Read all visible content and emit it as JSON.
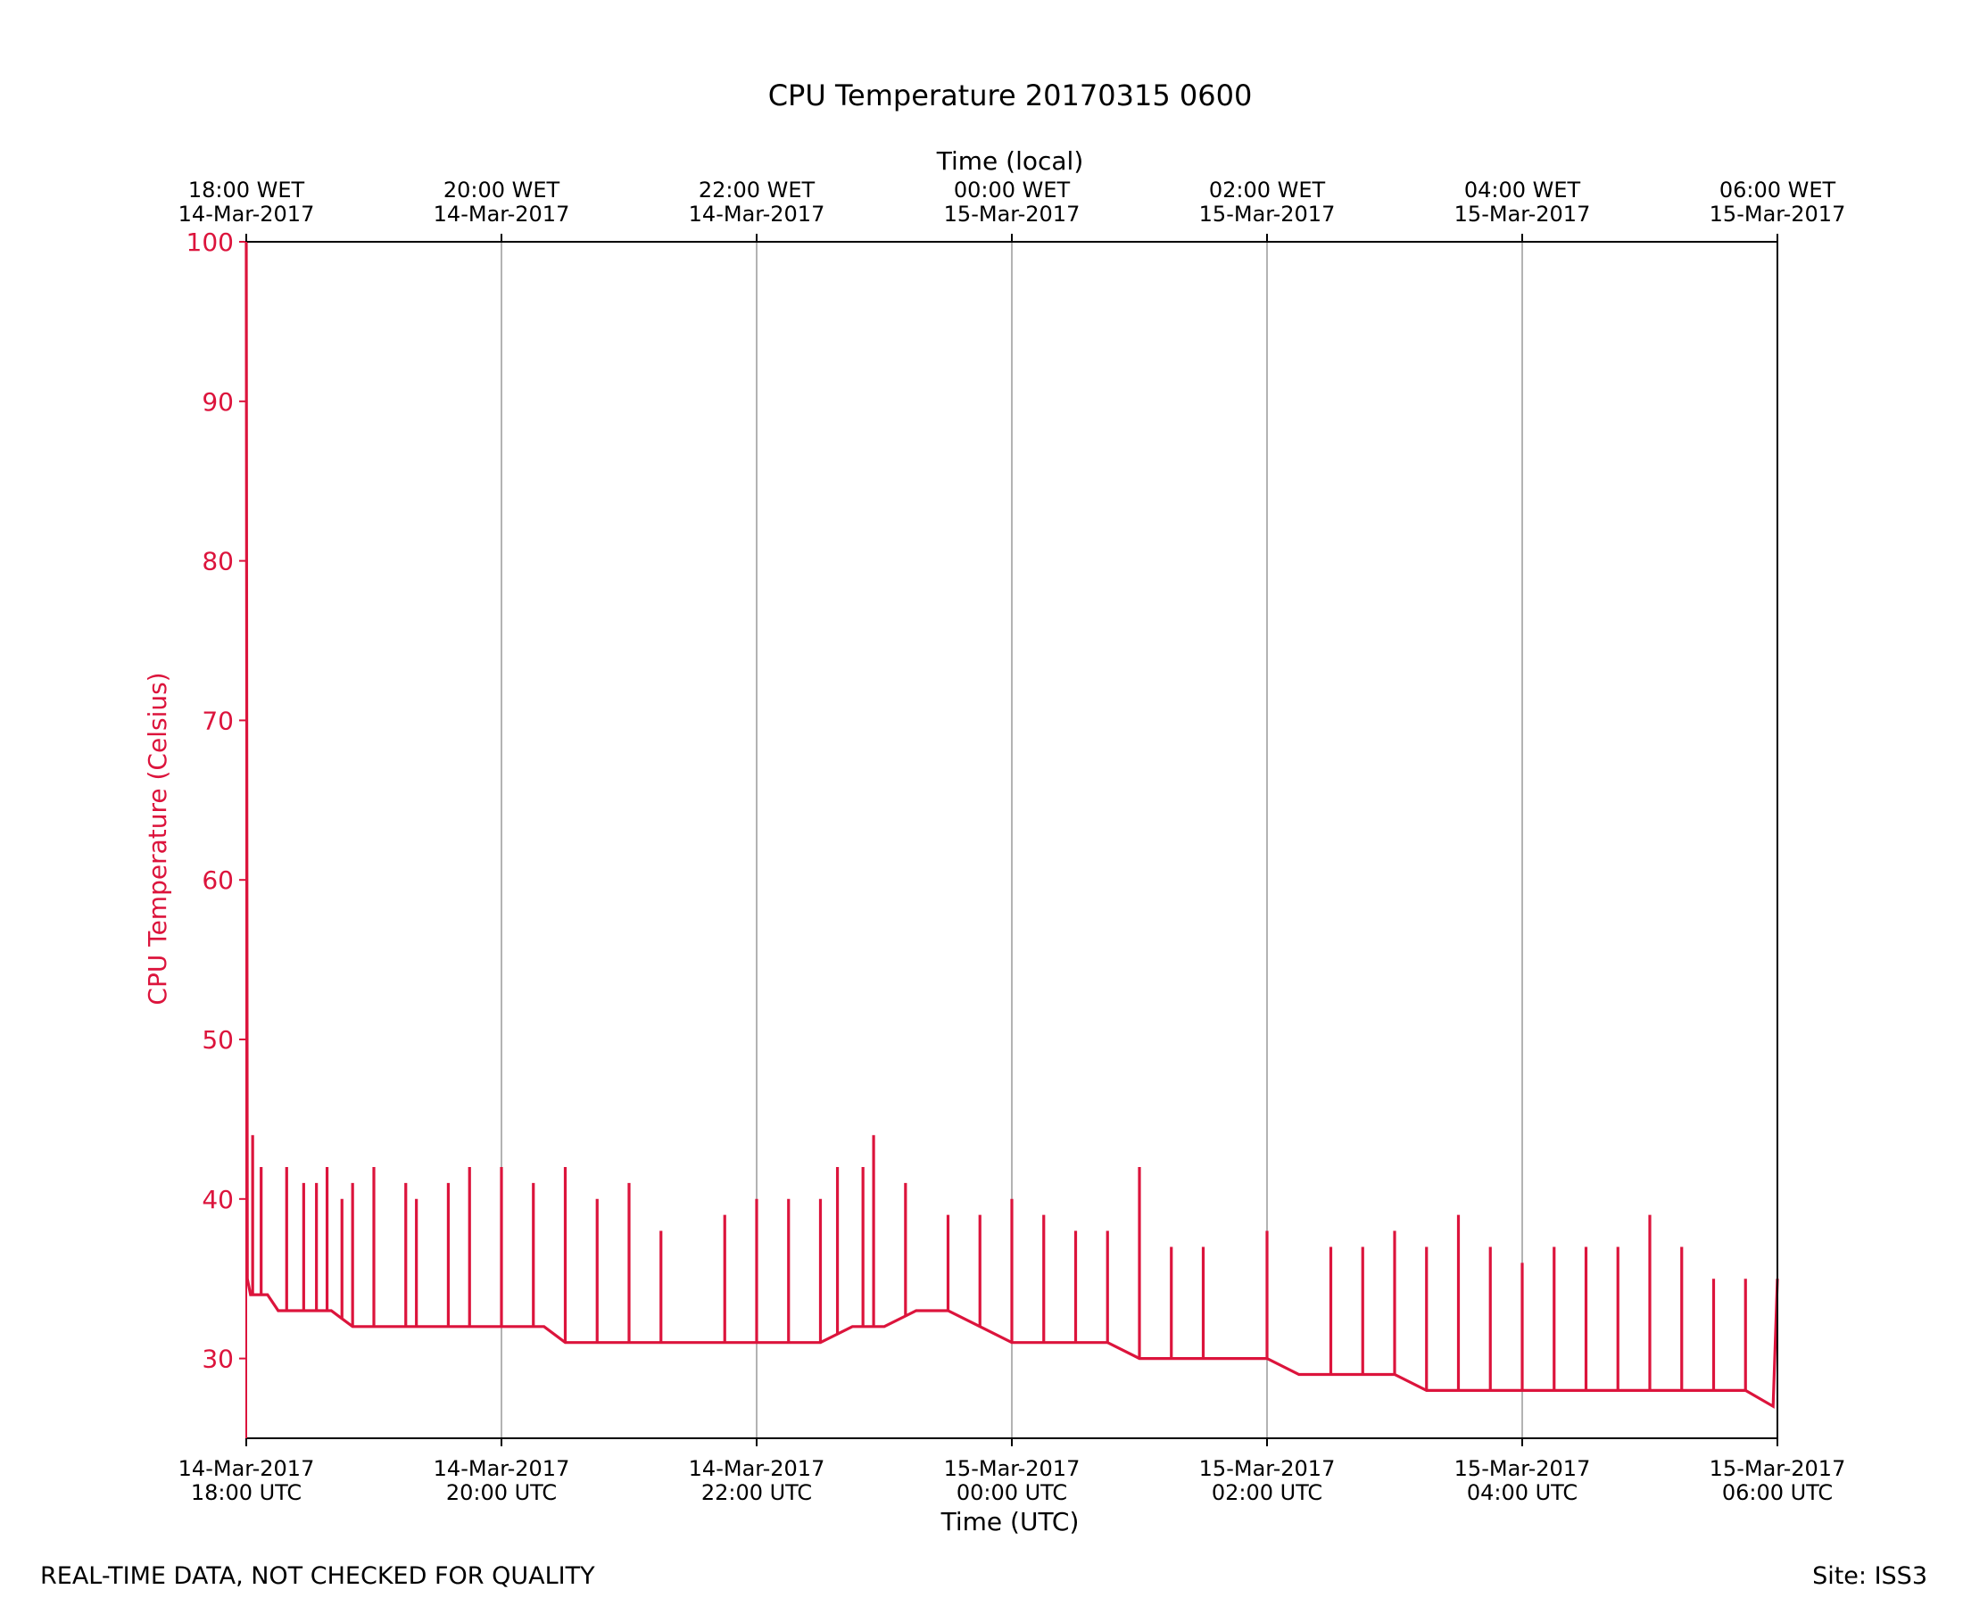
{
  "chart_data": {
    "type": "line",
    "title": "CPU Temperature 20170315 0600",
    "xlabel": "Time (UTC)",
    "x2label": "Time (local)",
    "ylabel": "CPU Temperature (Celsius)",
    "xlim": [
      "2017-03-14T18:00:00Z",
      "2017-03-15T06:00:00Z"
    ],
    "ylim": [
      25,
      100
    ],
    "grid": "vertical",
    "colors": {
      "series": "#dc143c",
      "grid": "#a0a0a0",
      "axis": "#000000",
      "text": "#000000"
    },
    "yticks": [
      30,
      40,
      50,
      60,
      70,
      80,
      90,
      100
    ],
    "ytick_labels": [
      "30",
      "40",
      "50",
      "60",
      "70",
      "80",
      "90",
      "100"
    ],
    "xticks": [
      "2017-03-14T18:00:00Z",
      "2017-03-14T20:00:00Z",
      "2017-03-14T22:00:00Z",
      "2017-03-15T00:00:00Z",
      "2017-03-15T02:00:00Z",
      "2017-03-15T04:00:00Z",
      "2017-03-15T06:00:00Z"
    ],
    "xtick_labels_bottom": [
      [
        "14-Mar-2017",
        "18:00 UTC"
      ],
      [
        "14-Mar-2017",
        "20:00 UTC"
      ],
      [
        "14-Mar-2017",
        "22:00 UTC"
      ],
      [
        "15-Mar-2017",
        "00:00 UTC"
      ],
      [
        "15-Mar-2017",
        "02:00 UTC"
      ],
      [
        "15-Mar-2017",
        "04:00 UTC"
      ],
      [
        "15-Mar-2017",
        "06:00 UTC"
      ]
    ],
    "xtick_labels_top": [
      [
        "18:00 WET",
        "14-Mar-2017"
      ],
      [
        "20:00 WET",
        "14-Mar-2017"
      ],
      [
        "22:00 WET",
        "14-Mar-2017"
      ],
      [
        "00:00 WET",
        "15-Mar-2017"
      ],
      [
        "02:00 WET",
        "15-Mar-2017"
      ],
      [
        "04:00 WET",
        "15-Mar-2017"
      ],
      [
        "06:00 WET",
        "15-Mar-2017"
      ]
    ],
    "series": [
      {
        "values_note": "",
        "x": [
          "2017-03-14T18:00:00Z",
          "2017-03-14T18:00:30Z",
          "2017-03-14T18:02:00Z",
          "2017-03-14T18:10:00Z",
          "2017-03-14T18:15:00Z",
          "2017-03-14T18:25:00Z",
          "2017-03-14T18:40:00Z",
          "2017-03-14T18:50:00Z",
          "2017-03-14T19:00:00Z",
          "2017-03-14T19:10:00Z",
          "2017-03-14T19:20:00Z",
          "2017-03-14T19:30:00Z",
          "2017-03-14T19:40:00Z",
          "2017-03-14T19:50:00Z",
          "2017-03-14T20:00:00Z",
          "2017-03-14T20:10:00Z",
          "2017-03-14T20:20:00Z",
          "2017-03-14T20:30:00Z",
          "2017-03-14T20:45:00Z",
          "2017-03-14T21:00:00Z",
          "2017-03-14T21:15:00Z",
          "2017-03-14T21:30:00Z",
          "2017-03-14T21:45:00Z",
          "2017-03-14T22:00:00Z",
          "2017-03-14T22:15:00Z",
          "2017-03-14T22:30:00Z",
          "2017-03-14T22:45:00Z",
          "2017-03-14T23:00:00Z",
          "2017-03-14T23:15:00Z",
          "2017-03-14T23:30:00Z",
          "2017-03-14T23:45:00Z",
          "2017-03-15T00:00:00Z",
          "2017-03-15T00:15:00Z",
          "2017-03-15T00:30:00Z",
          "2017-03-15T00:45:00Z",
          "2017-03-15T01:00:00Z",
          "2017-03-15T01:15:00Z",
          "2017-03-15T01:30:00Z",
          "2017-03-15T01:45:00Z",
          "2017-03-15T02:00:00Z",
          "2017-03-15T02:15:00Z",
          "2017-03-15T02:30:00Z",
          "2017-03-15T02:45:00Z",
          "2017-03-15T03:00:00Z",
          "2017-03-15T03:15:00Z",
          "2017-03-15T03:30:00Z",
          "2017-03-15T03:45:00Z",
          "2017-03-15T04:00:00Z",
          "2017-03-15T04:15:00Z",
          "2017-03-15T04:30:00Z",
          "2017-03-15T04:45:00Z",
          "2017-03-15T05:00:00Z",
          "2017-03-15T05:15:00Z",
          "2017-03-15T05:30:00Z",
          "2017-03-15T05:45:00Z",
          "2017-03-15T05:58:00Z",
          "2017-03-15T06:00:00Z"
        ],
        "values": [
          100,
          35,
          34,
          34,
          33,
          33,
          33,
          32,
          32,
          32,
          32,
          32,
          32,
          32,
          32,
          32,
          32,
          31,
          31,
          31,
          31,
          31,
          31,
          31,
          31,
          31,
          32,
          32,
          33,
          33,
          32,
          31,
          31,
          31,
          31,
          30,
          30,
          30,
          30,
          30,
          29,
          29,
          29,
          29,
          28,
          28,
          28,
          28,
          28,
          28,
          28,
          28,
          28,
          28,
          28,
          27,
          35
        ],
        "spikes": [
          [
            "2017-03-14T18:03:00Z",
            44
          ],
          [
            "2017-03-14T18:07:00Z",
            42
          ],
          [
            "2017-03-14T18:19:00Z",
            42
          ],
          [
            "2017-03-14T18:27:00Z",
            41
          ],
          [
            "2017-03-14T18:33:00Z",
            41
          ],
          [
            "2017-03-14T18:38:00Z",
            42
          ],
          [
            "2017-03-14T18:45:00Z",
            40
          ],
          [
            "2017-03-14T18:50:00Z",
            41
          ],
          [
            "2017-03-14T19:00:00Z",
            42
          ],
          [
            "2017-03-14T19:15:00Z",
            41
          ],
          [
            "2017-03-14T19:20:00Z",
            40
          ],
          [
            "2017-03-14T19:35:00Z",
            41
          ],
          [
            "2017-03-14T19:45:00Z",
            42
          ],
          [
            "2017-03-14T20:00:00Z",
            42
          ],
          [
            "2017-03-14T20:15:00Z",
            41
          ],
          [
            "2017-03-14T20:30:00Z",
            42
          ],
          [
            "2017-03-14T20:45:00Z",
            40
          ],
          [
            "2017-03-14T21:00:00Z",
            41
          ],
          [
            "2017-03-14T21:15:00Z",
            38
          ],
          [
            "2017-03-14T21:45:00Z",
            39
          ],
          [
            "2017-03-14T22:00:00Z",
            40
          ],
          [
            "2017-03-14T22:15:00Z",
            40
          ],
          [
            "2017-03-14T22:30:00Z",
            40
          ],
          [
            "2017-03-14T22:38:00Z",
            42
          ],
          [
            "2017-03-14T22:50:00Z",
            42
          ],
          [
            "2017-03-14T22:55:00Z",
            44
          ],
          [
            "2017-03-14T23:10:00Z",
            41
          ],
          [
            "2017-03-14T23:30:00Z",
            39
          ],
          [
            "2017-03-14T23:45:00Z",
            39
          ],
          [
            "2017-03-15T00:00:00Z",
            40
          ],
          [
            "2017-03-15T00:15:00Z",
            39
          ],
          [
            "2017-03-15T00:30:00Z",
            38
          ],
          [
            "2017-03-15T00:45:00Z",
            38
          ],
          [
            "2017-03-15T01:00:00Z",
            42
          ],
          [
            "2017-03-15T01:15:00Z",
            37
          ],
          [
            "2017-03-15T01:30:00Z",
            37
          ],
          [
            "2017-03-15T02:00:00Z",
            38
          ],
          [
            "2017-03-15T02:30:00Z",
            37
          ],
          [
            "2017-03-15T02:45:00Z",
            37
          ],
          [
            "2017-03-15T03:00:00Z",
            38
          ],
          [
            "2017-03-15T03:15:00Z",
            37
          ],
          [
            "2017-03-15T03:30:00Z",
            39
          ],
          [
            "2017-03-15T03:45:00Z",
            37
          ],
          [
            "2017-03-15T04:00:00Z",
            36
          ],
          [
            "2017-03-15T04:15:00Z",
            37
          ],
          [
            "2017-03-15T04:30:00Z",
            37
          ],
          [
            "2017-03-15T04:45:00Z",
            37
          ],
          [
            "2017-03-15T05:00:00Z",
            39
          ],
          [
            "2017-03-15T05:15:00Z",
            37
          ],
          [
            "2017-03-15T05:30:00Z",
            35
          ],
          [
            "2017-03-15T05:45:00Z",
            35
          ]
        ]
      }
    ]
  },
  "footer": {
    "left": "REAL-TIME DATA, NOT CHECKED FOR QUALITY",
    "right": "Site: ISS3"
  }
}
